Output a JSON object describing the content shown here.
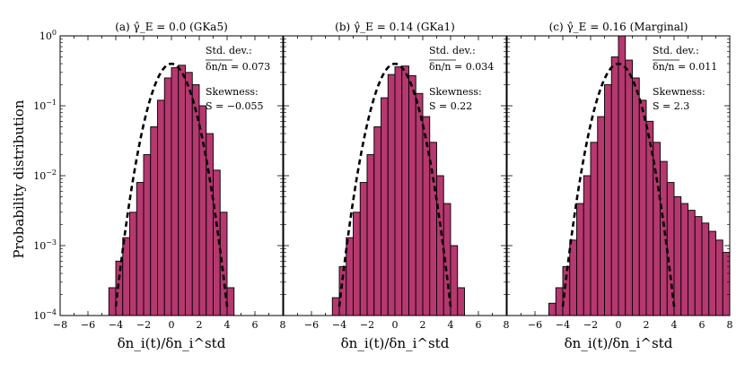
{
  "chart_data": {
    "type": "histogram",
    "ylabel": "Probability distribution",
    "xlabel": "δn_i(t)/δn_i^std",
    "x_ticks": [
      "−8",
      "−6",
      "−4",
      "−2",
      "0",
      "2",
      "4",
      "6",
      "8"
    ],
    "y_ticks": [
      {
        "base": "10",
        "exp": "0"
      },
      {
        "base": "10",
        "exp": "−1"
      },
      {
        "base": "10",
        "exp": "−2"
      },
      {
        "base": "10",
        "exp": "−3"
      },
      {
        "base": "10",
        "exp": "−4"
      }
    ],
    "xlim": [
      -8,
      8
    ],
    "ylim_log10": [
      -4,
      0
    ],
    "bin_width": 0.5,
    "bar_color": "#b5386f",
    "fit": "gaussian",
    "panels": [
      {
        "title": "(a) γ̂_E = 0.0 (GKa5)",
        "std_label": "Std. dev.:",
        "std_value": "δn/n = 0.073",
        "skew_label": "Skewness:",
        "skew_value": "S = −0.055",
        "bins": [
          [
            -4.5,
            0.00025
          ],
          [
            -4.0,
            0.0006
          ],
          [
            -3.5,
            0.0013
          ],
          [
            -3.0,
            0.003
          ],
          [
            -2.5,
            0.008
          ],
          [
            -2.0,
            0.02
          ],
          [
            -1.5,
            0.05
          ],
          [
            -1.0,
            0.12
          ],
          [
            -0.5,
            0.25
          ],
          [
            0.0,
            0.35
          ],
          [
            0.5,
            0.38
          ],
          [
            1.0,
            0.3
          ],
          [
            1.5,
            0.2
          ],
          [
            2.0,
            0.1
          ],
          [
            2.5,
            0.04
          ],
          [
            3.0,
            0.012
          ],
          [
            3.5,
            0.003
          ],
          [
            4.0,
            0.00025
          ]
        ]
      },
      {
        "title": "(b) γ̂_E = 0.14 (GKa1)",
        "std_label": "Std. dev.:",
        "std_value": "δn/n = 0.034",
        "skew_label": "Skewness:",
        "skew_value": "S = 0.22",
        "bins": [
          [
            -4.5,
            0.00018
          ],
          [
            -4.0,
            0.0005
          ],
          [
            -3.5,
            0.0013
          ],
          [
            -3.0,
            0.003
          ],
          [
            -2.5,
            0.008
          ],
          [
            -2.0,
            0.02
          ],
          [
            -1.5,
            0.05
          ],
          [
            -1.0,
            0.13
          ],
          [
            -0.5,
            0.28
          ],
          [
            0.0,
            0.36
          ],
          [
            0.5,
            0.37
          ],
          [
            1.0,
            0.27
          ],
          [
            1.5,
            0.15
          ],
          [
            2.0,
            0.07
          ],
          [
            2.5,
            0.03
          ],
          [
            3.0,
            0.01
          ],
          [
            3.5,
            0.004
          ],
          [
            4.0,
            0.001
          ],
          [
            4.5,
            0.00025
          ]
        ]
      },
      {
        "title": "(c) γ̂_E = 0.16 (Marginal)",
        "std_label": "Std. dev.:",
        "std_value": "δn/n = 0.011",
        "skew_label": "Skewness:",
        "skew_value": "S = 2.3",
        "bins": [
          [
            -5.0,
            0.00015
          ],
          [
            -4.5,
            0.00025
          ],
          [
            -4.0,
            0.0005
          ],
          [
            -3.5,
            0.0012
          ],
          [
            -3.0,
            0.004
          ],
          [
            -2.5,
            0.01
          ],
          [
            -2.0,
            0.03
          ],
          [
            -1.5,
            0.07
          ],
          [
            -1.0,
            0.2
          ],
          [
            -0.5,
            0.5
          ],
          [
            0.0,
            1.0
          ],
          [
            0.5,
            0.45
          ],
          [
            1.0,
            0.25
          ],
          [
            1.5,
            0.12
          ],
          [
            2.0,
            0.06
          ],
          [
            2.5,
            0.03
          ],
          [
            3.0,
            0.016
          ],
          [
            3.5,
            0.008
          ],
          [
            4.0,
            0.005
          ],
          [
            4.5,
            0.004
          ],
          [
            5.0,
            0.0032
          ],
          [
            5.5,
            0.0026
          ],
          [
            6.0,
            0.0021
          ],
          [
            6.5,
            0.0016
          ],
          [
            7.0,
            0.0012
          ],
          [
            7.5,
            0.0008
          ]
        ]
      }
    ]
  }
}
